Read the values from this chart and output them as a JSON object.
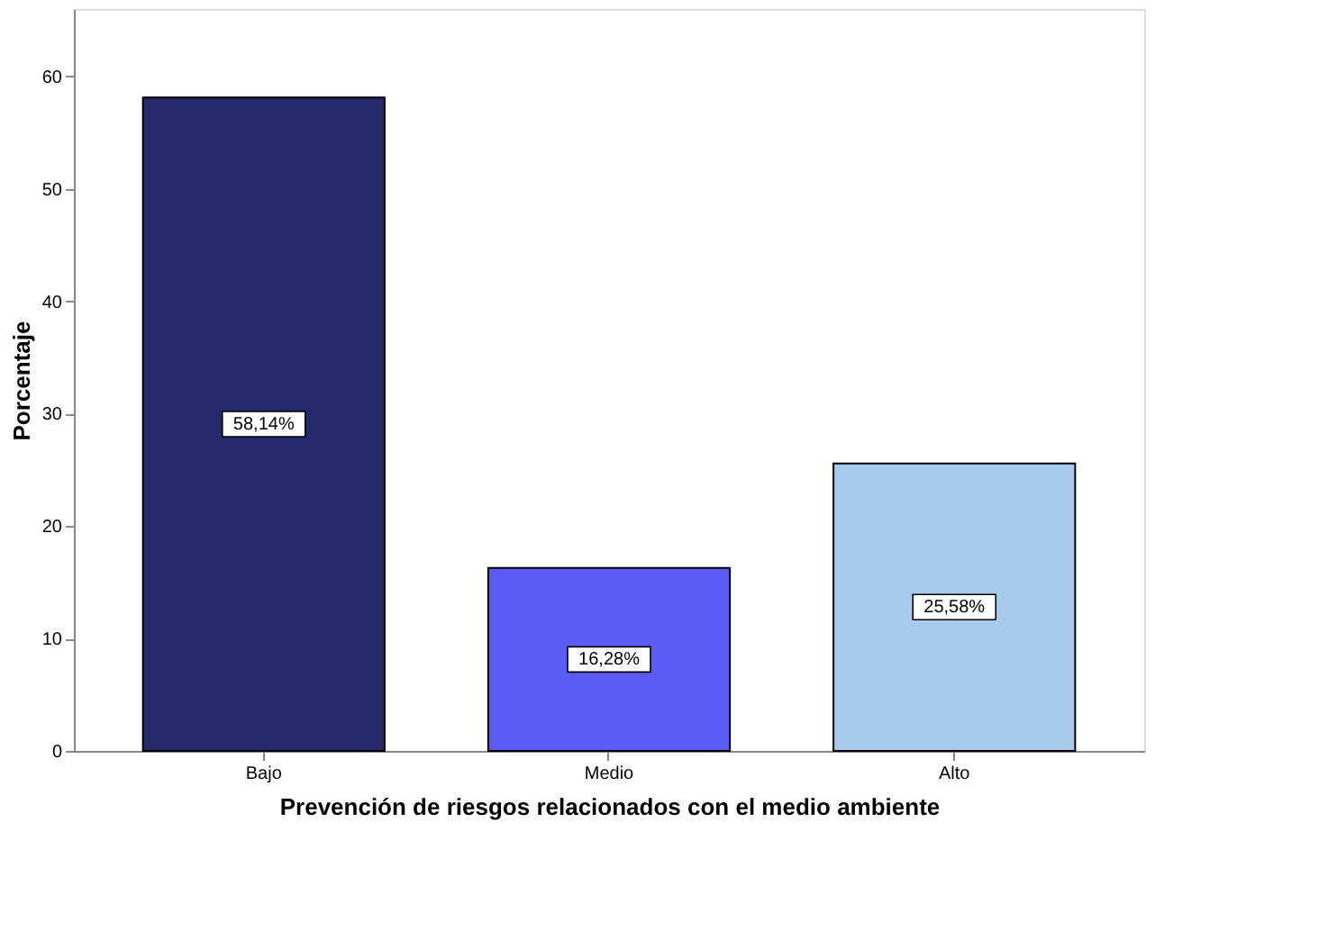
{
  "chart_data": {
    "type": "bar",
    "xlabel": "Prevención de riesgos relacionados con el medio ambiente",
    "ylabel": "Porcentaje",
    "categories": [
      "Bajo",
      "Medio",
      "Alto"
    ],
    "values": [
      58.14,
      16.28,
      25.58
    ],
    "value_labels": [
      "58,14%",
      "16,28%",
      "25,58%"
    ],
    "colors": [
      "#262a6b",
      "#5b5cf5",
      "#a9cbeb"
    ],
    "ylim": [
      0,
      66
    ],
    "yticks": [
      0,
      10,
      20,
      30,
      40,
      50,
      60
    ],
    "grid": false,
    "legend": false
  }
}
